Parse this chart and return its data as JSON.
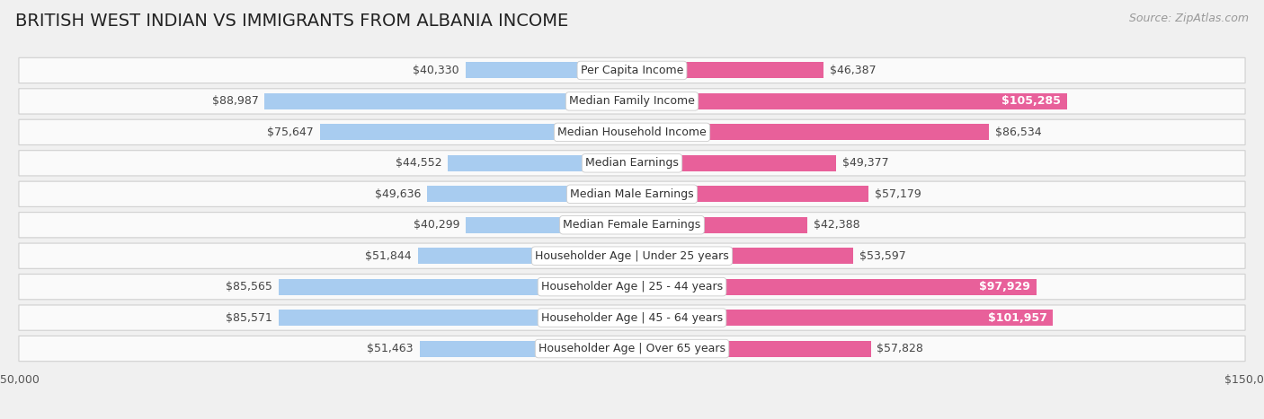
{
  "title": "BRITISH WEST INDIAN VS IMMIGRANTS FROM ALBANIA INCOME",
  "source": "Source: ZipAtlas.com",
  "categories": [
    "Per Capita Income",
    "Median Family Income",
    "Median Household Income",
    "Median Earnings",
    "Median Male Earnings",
    "Median Female Earnings",
    "Householder Age | Under 25 years",
    "Householder Age | 25 - 44 years",
    "Householder Age | 45 - 64 years",
    "Householder Age | Over 65 years"
  ],
  "left_values": [
    40330,
    88987,
    75647,
    44552,
    49636,
    40299,
    51844,
    85565,
    85571,
    51463
  ],
  "right_values": [
    46387,
    105285,
    86534,
    49377,
    57179,
    42388,
    53597,
    97929,
    101957,
    57828
  ],
  "left_labels": [
    "$40,330",
    "$88,987",
    "$75,647",
    "$44,552",
    "$49,636",
    "$40,299",
    "$51,844",
    "$85,565",
    "$85,571",
    "$51,463"
  ],
  "right_labels": [
    "$46,387",
    "$105,285",
    "$86,534",
    "$49,377",
    "$57,179",
    "$42,388",
    "$53,597",
    "$97,929",
    "$101,957",
    "$57,828"
  ],
  "right_label_inside": [
    false,
    true,
    false,
    false,
    false,
    false,
    false,
    true,
    true,
    false
  ],
  "left_label_inside": [
    false,
    false,
    false,
    false,
    false,
    false,
    false,
    false,
    false,
    false
  ],
  "left_color_light": "#A8CCF0",
  "left_color_strong": "#5A8FC4",
  "right_color_light": "#F5AECB",
  "right_color_strong": "#E8609A",
  "max_value": 150000,
  "legend_left": "British West Indian",
  "legend_right": "Immigrants from Albania",
  "bg_color": "#f0f0f0",
  "row_bg_color": "#fafafa",
  "row_border_color": "#d0d0d0",
  "title_fontsize": 14,
  "source_fontsize": 9,
  "bar_label_fontsize": 9,
  "category_fontsize": 9
}
